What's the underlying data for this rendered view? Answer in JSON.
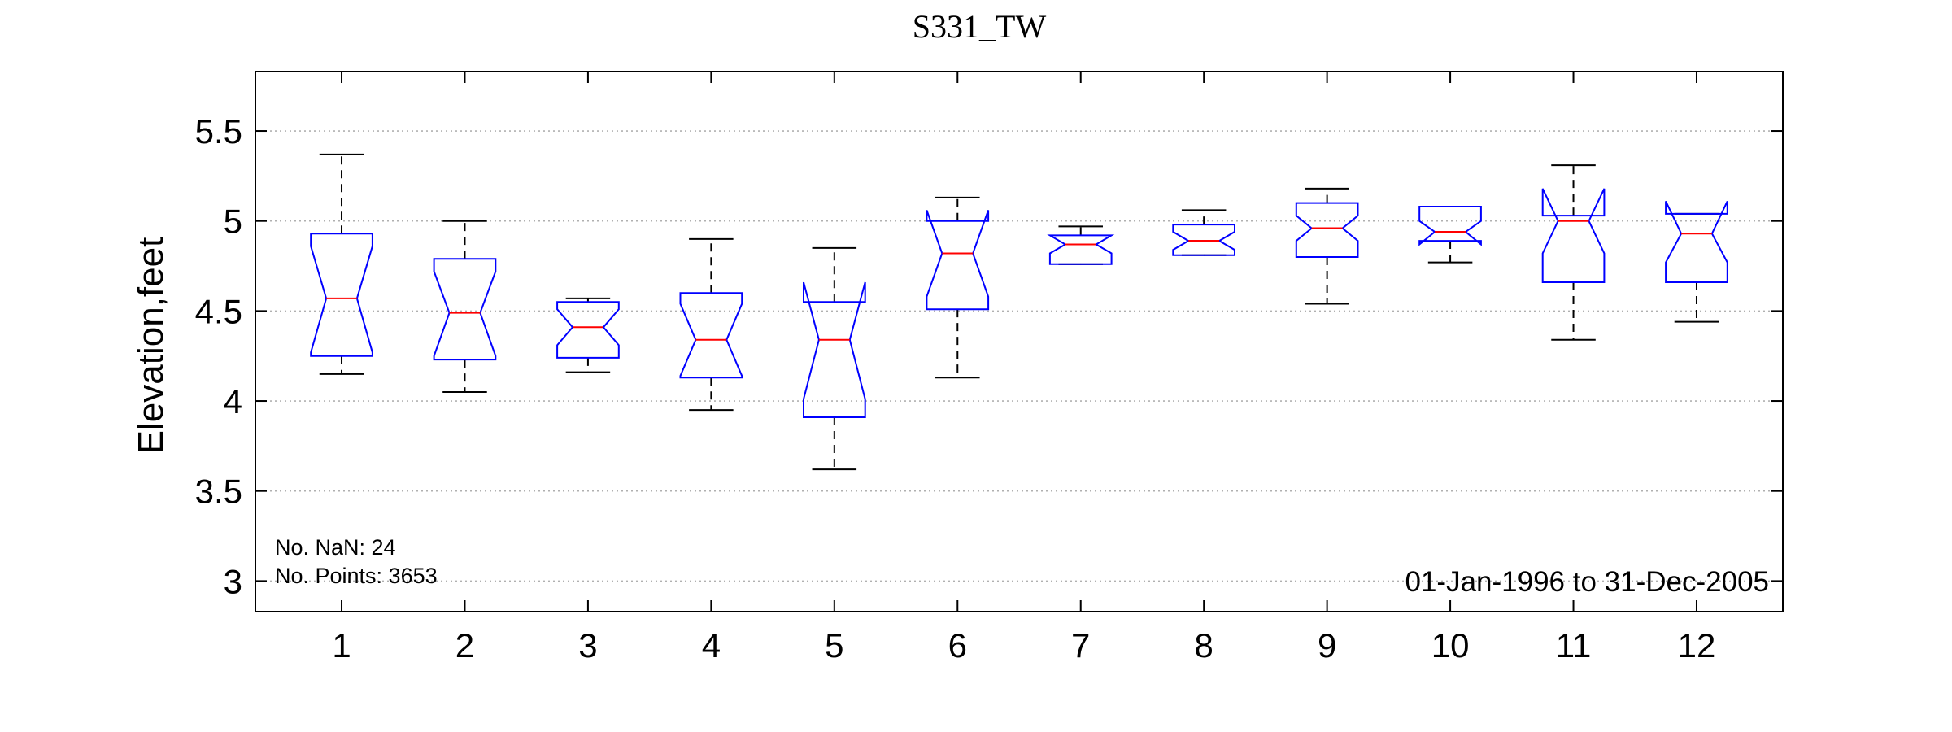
{
  "chart_data": {
    "type": "boxplot",
    "title": "S331_TW",
    "xlabel": "",
    "ylabel": "Elevation,feet",
    "categories": [
      "1",
      "2",
      "3",
      "4",
      "5",
      "6",
      "7",
      "8",
      "9",
      "10",
      "11",
      "12"
    ],
    "ylim": [
      2.83,
      5.83
    ],
    "yticks": [
      "3",
      "3.5",
      "4",
      "4.5",
      "5",
      "5.5"
    ],
    "grid": "horizontal dotted",
    "notched": true,
    "colors": {
      "box": "#0000ff",
      "median": "#ff0000",
      "whisker": "#000000",
      "grid": "#b0b0b0"
    },
    "boxes": [
      {
        "month": "1",
        "whisker_low": 4.15,
        "q1": 4.25,
        "median": 4.57,
        "q3": 4.93,
        "whisker_high": 5.37,
        "notch_low": 4.27,
        "notch_high": 4.86
      },
      {
        "month": "2",
        "whisker_low": 4.05,
        "q1": 4.23,
        "median": 4.49,
        "q3": 4.79,
        "whisker_high": 5.0,
        "notch_low": 4.25,
        "notch_high": 4.72
      },
      {
        "month": "3",
        "whisker_low": 4.16,
        "q1": 4.24,
        "median": 4.41,
        "q3": 4.55,
        "whisker_high": 4.57,
        "notch_low": 4.31,
        "notch_high": 4.51
      },
      {
        "month": "4",
        "whisker_low": 3.95,
        "q1": 4.13,
        "median": 4.34,
        "q3": 4.6,
        "whisker_high": 4.9,
        "notch_low": 4.14,
        "notch_high": 4.54
      },
      {
        "month": "5",
        "whisker_low": 3.62,
        "q1": 3.91,
        "median": 4.34,
        "q3": 4.55,
        "whisker_high": 4.85,
        "notch_low": 4.01,
        "notch_high": 4.66
      },
      {
        "month": "6",
        "whisker_low": 4.13,
        "q1": 4.51,
        "median": 4.82,
        "q3": 5.0,
        "whisker_high": 5.13,
        "notch_low": 4.58,
        "notch_high": 5.06
      },
      {
        "month": "7",
        "whisker_low": 4.76,
        "q1": 4.76,
        "median": 4.87,
        "q3": 4.92,
        "whisker_high": 4.97,
        "notch_low": 4.82,
        "notch_high": 4.92
      },
      {
        "month": "8",
        "whisker_low": 4.81,
        "q1": 4.81,
        "median": 4.89,
        "q3": 4.98,
        "whisker_high": 5.06,
        "notch_low": 4.84,
        "notch_high": 4.94
      },
      {
        "month": "9",
        "whisker_low": 4.54,
        "q1": 4.8,
        "median": 4.96,
        "q3": 5.1,
        "whisker_high": 5.18,
        "notch_low": 4.89,
        "notch_high": 5.03
      },
      {
        "month": "10",
        "whisker_low": 4.77,
        "q1": 4.89,
        "median": 4.94,
        "q3": 5.08,
        "whisker_high": 5.08,
        "notch_low": 4.87,
        "notch_high": 5.0
      },
      {
        "month": "11",
        "whisker_low": 4.34,
        "q1": 4.66,
        "median": 5.0,
        "q3": 5.03,
        "whisker_high": 5.31,
        "notch_low": 4.82,
        "notch_high": 5.18
      },
      {
        "month": "12",
        "whisker_low": 4.44,
        "q1": 4.66,
        "median": 4.93,
        "q3": 5.04,
        "whisker_high": 5.04,
        "notch_low": 4.77,
        "notch_high": 5.11
      }
    ],
    "annotations": {
      "nan_count": "No. NaN: 24",
      "points_count": "No. Points: 3653",
      "date_range": "01-Jan-1996 to 31-Dec-2005"
    }
  }
}
